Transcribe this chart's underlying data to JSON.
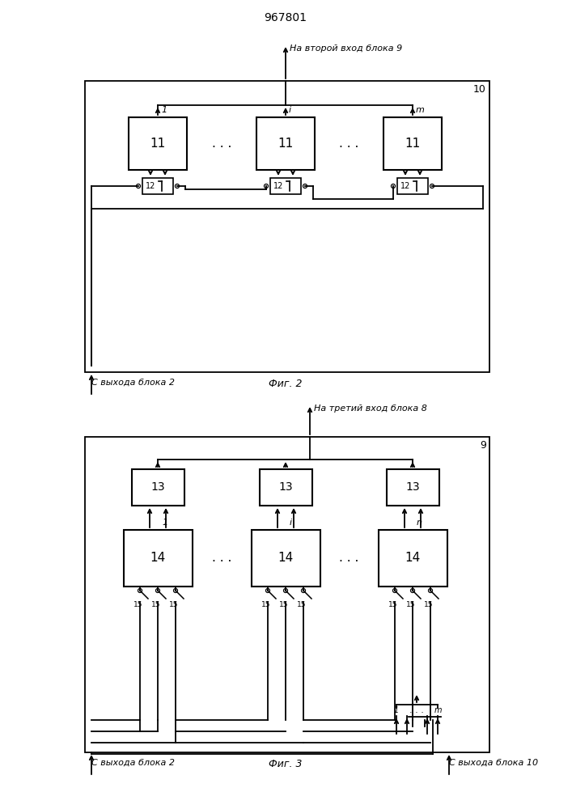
{
  "title": "967801",
  "fig1_label": "Фиг. 2",
  "fig2_label": "Фиг. 3",
  "fig1_title": "На второй вход блока 9",
  "fig2_title": "На третий вход блока 8",
  "fig1_bottom_label": "С выхода блока 2",
  "fig2_bottom_left": "С выхода блока 2",
  "fig2_bottom_right": "С выхода блока 10",
  "bg_color": "white"
}
